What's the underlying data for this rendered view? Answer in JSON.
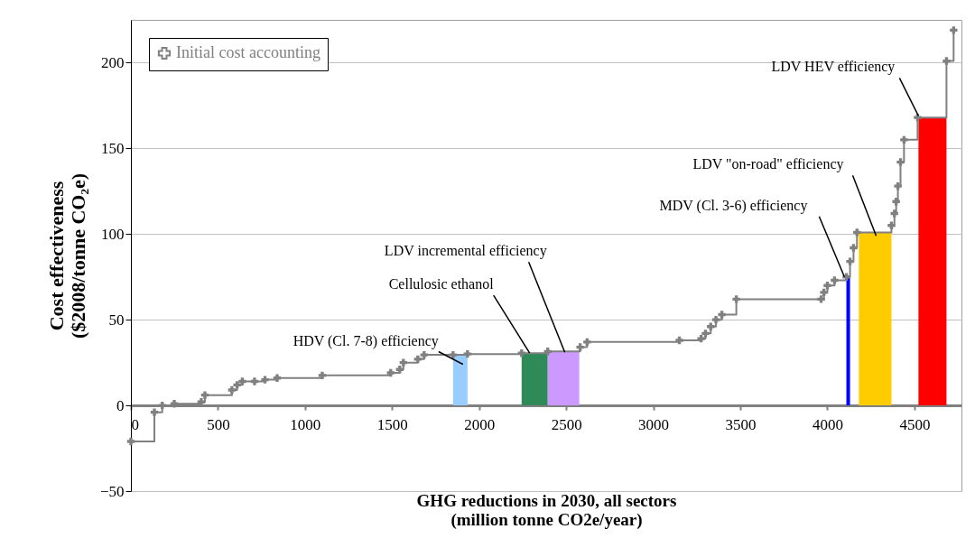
{
  "chart_data": {
    "type": "step",
    "xlabel": "GHG reductions in 2030, all sectors\n(million tonne CO2e/year)",
    "ylabel": "Cost effectiveness\n($2008/tonne CO₂e)",
    "xlim": [
      0,
      4770
    ],
    "xticks": [
      0,
      500,
      1000,
      1500,
      2000,
      2500,
      3000,
      3500,
      4000,
      4500
    ],
    "ylim": [
      -50,
      225
    ],
    "yticks": [
      -50,
      0,
      50,
      100,
      150,
      200
    ],
    "grid": "y",
    "legend": "top left",
    "line_style": "solid",
    "series": [
      {
        "type": "area",
        "color": "#99ccff",
        "x": [
          1850,
          1933
        ],
        "values": [
          29.5,
          29.5
        ]
      },
      {
        "type": "area",
        "color": "#2e8b57",
        "x": [
          2244,
          2394
        ],
        "values": [
          30.5,
          30.5
        ]
      },
      {
        "type": "area",
        "color": "#cc99ff",
        "x": [
          2394,
          2575
        ],
        "values": [
          31.5,
          31.5
        ]
      },
      {
        "type": "area",
        "color": "#0000ff",
        "x": [
          4109,
          4130
        ],
        "values": [
          75,
          75
        ]
      },
      {
        "type": "area",
        "color": "#ffcc00",
        "x": [
          4181,
          4368
        ],
        "values": [
          101,
          101
        ]
      },
      {
        "type": "area",
        "color": "#ff0000",
        "x": [
          4523,
          4684
        ],
        "values": [
          168,
          168
        ]
      },
      {
        "name": "Initial cost accounting",
        "marker": "cross",
        "color": "#808080",
        "x": [
          0,
          135,
          180,
          249,
          404,
          425,
          580,
          610,
          640,
          710,
          770,
          840,
          1099,
          1492,
          1544,
          1565,
          1648,
          1684,
          1850,
          1933,
          2244,
          2394,
          2580,
          2620,
          3150,
          3275,
          3300,
          3330,
          3360,
          3394,
          3477,
          3964,
          3980,
          4000,
          4041,
          4109,
          4130,
          4150,
          4170,
          4368,
          4385,
          4395,
          4405,
          4420,
          4440,
          4518,
          4684,
          4725
        ],
        "values": [
          -21,
          -4,
          0,
          1,
          2,
          6,
          9,
          12,
          14,
          14,
          15,
          16,
          17.5,
          19,
          21,
          25,
          27,
          29.5,
          29.5,
          30,
          30.5,
          31.5,
          34,
          37,
          38,
          39,
          42,
          46,
          50,
          53,
          62,
          62,
          66,
          70,
          73,
          75,
          84,
          92,
          101,
          105,
          112,
          119,
          128,
          142,
          155,
          168,
          201,
          219
        ]
      }
    ],
    "annotations": [
      {
        "text": "HDV (Cl. 7-8) efficiency",
        "x": 1907,
        "y": 24
      },
      {
        "text": "Cellulosic ethanol",
        "x": 2290,
        "y": 30.5
      },
      {
        "text": "LDV incremental efficiency",
        "x": 2492,
        "y": 31
      },
      {
        "text": "MDV (Cl. 3-6) efficiency",
        "x": 4098,
        "y": 75
      },
      {
        "text": "LDV \"on-road\" efficiency",
        "x": 4280,
        "y": 99
      },
      {
        "text": "LDV HEV efficiency",
        "x": 4523,
        "y": 169
      }
    ]
  }
}
